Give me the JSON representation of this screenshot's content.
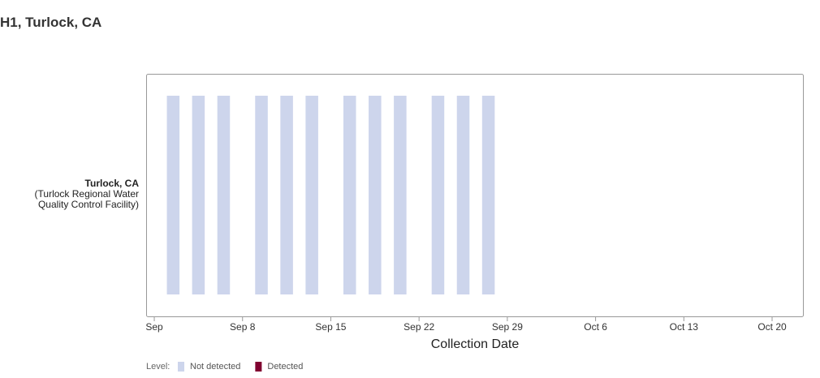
{
  "chart_data": {
    "type": "timeline",
    "title": "H1, Turlock, CA",
    "categories": [
      "Turlock, CA"
    ],
    "category_note": "(Turlock Regional Water Quality Control Facility)",
    "xlabel": "Collection Date",
    "x": [
      "Sep 2",
      "Sep 4",
      "Sep 6",
      "Sep 9",
      "Sep 11",
      "Sep 13",
      "Sep 16",
      "Sep 18",
      "Sep 20",
      "Sep 23",
      "Sep 25",
      "Sep 27"
    ],
    "values": [
      "Not detected",
      "Not detected",
      "Not detected",
      "Not detected",
      "Not detected",
      "Not detected",
      "Not detected",
      "Not detected",
      "Not detected",
      "Not detected",
      "Not detected",
      "Not detected"
    ],
    "xlim": [
      "Aug 31",
      "Oct 23"
    ],
    "xticks": [
      {
        "value": "Sep 1",
        "label": "Sep"
      },
      "Sep 8",
      "Sep 15",
      "Sep 22",
      "Sep 29",
      "Oct 6",
      "Oct 13",
      "Oct 20"
    ],
    "legend_title": "Level:",
    "series": [
      {
        "name": "Not detected",
        "color": "#cdd5ec"
      },
      {
        "name": "Detected",
        "color": "#800030"
      }
    ]
  }
}
